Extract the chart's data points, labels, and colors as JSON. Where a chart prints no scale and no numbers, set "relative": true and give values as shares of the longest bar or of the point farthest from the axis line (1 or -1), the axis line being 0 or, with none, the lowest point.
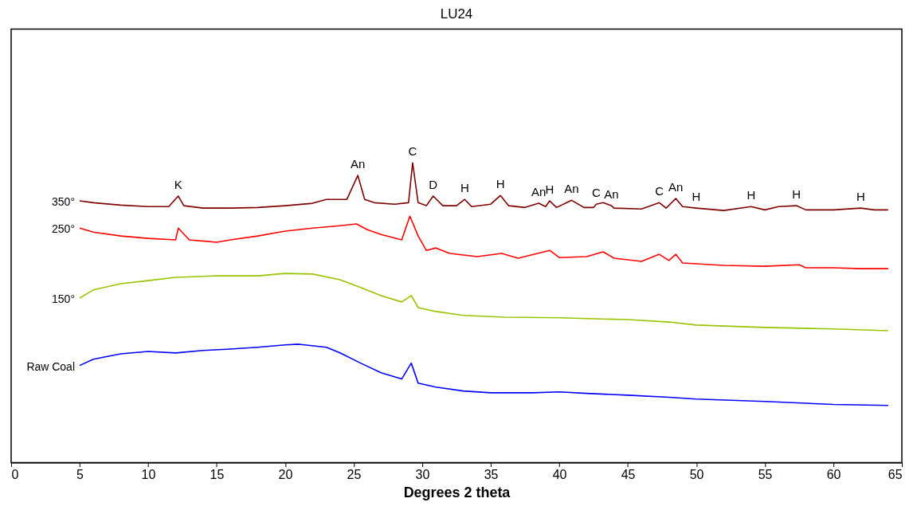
{
  "chart_data": {
    "type": "line",
    "title": "LU24",
    "xlabel": "Degrees 2 theta",
    "relative": true,
    "xlim": [
      0,
      65
    ],
    "xticks": [
      0,
      5,
      10,
      15,
      20,
      25,
      30,
      35,
      40,
      45,
      50,
      55,
      60,
      65
    ],
    "grid": false,
    "legend": false,
    "marker": "none",
    "line_style": "solid",
    "series": [
      {
        "name": "350°",
        "color": "#800000",
        "x": [
          5,
          6,
          8,
          10,
          11.5,
          12.2,
          12.6,
          14,
          16,
          18,
          20,
          22,
          23,
          24.5,
          25.3,
          25.8,
          26.5,
          28,
          29.0,
          29.3,
          29.7,
          30.3,
          30.8,
          31.5,
          32.5,
          33.1,
          33.6,
          35,
          35.7,
          36.3,
          37.5,
          38.5,
          39,
          39.3,
          39.8,
          40.9,
          41.8,
          42.5,
          42.7,
          43.2,
          43.8,
          44,
          46,
          47.3,
          47.8,
          48.5,
          49,
          50,
          52,
          54,
          55,
          56,
          57.3,
          58,
          60,
          62,
          63,
          64
        ],
        "values": [
          0.873,
          0.867,
          0.859,
          0.854,
          0.854,
          0.889,
          0.857,
          0.849,
          0.849,
          0.851,
          0.857,
          0.865,
          0.878,
          0.878,
          0.958,
          0.878,
          0.867,
          0.862,
          0.867,
          1,
          0.867,
          0.857,
          0.889,
          0.857,
          0.857,
          0.878,
          0.854,
          0.862,
          0.891,
          0.857,
          0.851,
          0.865,
          0.854,
          0.873,
          0.851,
          0.875,
          0.851,
          0.851,
          0.862,
          0.867,
          0.857,
          0.849,
          0.846,
          0.867,
          0.849,
          0.881,
          0.854,
          0.849,
          0.841,
          0.854,
          0.843,
          0.854,
          0.857,
          0.843,
          0.843,
          0.849,
          0.843,
          0.843
        ]
      },
      {
        "name": "250°",
        "color": "#ff0000",
        "x": [
          5,
          6,
          8,
          10,
          12,
          12.2,
          13,
          15,
          16,
          18,
          20,
          22,
          24,
          25.2,
          26,
          27,
          28.5,
          29.1,
          29.7,
          30.3,
          31,
          32,
          34,
          35.8,
          37,
          39.3,
          40,
          42,
          43.2,
          44,
          46,
          47.3,
          48,
          48.5,
          49,
          52,
          55,
          57.5,
          58,
          60,
          62,
          64
        ],
        "values": [
          0.782,
          0.769,
          0.756,
          0.748,
          0.743,
          0.782,
          0.743,
          0.735,
          0.743,
          0.756,
          0.772,
          0.782,
          0.79,
          0.796,
          0.777,
          0.761,
          0.743,
          0.822,
          0.756,
          0.708,
          0.716,
          0.698,
          0.687,
          0.698,
          0.682,
          0.708,
          0.684,
          0.687,
          0.703,
          0.682,
          0.671,
          0.695,
          0.674,
          0.695,
          0.666,
          0.658,
          0.655,
          0.66,
          0.65,
          0.65,
          0.647,
          0.647
        ]
      },
      {
        "name": "150°",
        "color": "#99c400",
        "x": [
          5,
          6,
          8,
          10,
          12,
          15,
          18,
          20,
          22,
          24,
          25.5,
          27,
          28.5,
          29.2,
          29.7,
          31,
          33,
          36,
          40,
          45,
          48,
          50,
          55,
          60,
          64
        ],
        "values": [
          0.549,
          0.576,
          0.597,
          0.607,
          0.618,
          0.623,
          0.623,
          0.631,
          0.629,
          0.61,
          0.584,
          0.557,
          0.536,
          0.557,
          0.517,
          0.504,
          0.491,
          0.485,
          0.483,
          0.477,
          0.469,
          0.459,
          0.451,
          0.446,
          0.44
        ]
      },
      {
        "name": "Raw Coal",
        "color": "#0000ff",
        "x": [
          5,
          6,
          8,
          10,
          12,
          14,
          16,
          18,
          20,
          21,
          23,
          24,
          25.5,
          27,
          28.5,
          29.2,
          29.7,
          31,
          33,
          35,
          38,
          40,
          42,
          45,
          48,
          50,
          55,
          60,
          64
        ],
        "values": [
          0.324,
          0.345,
          0.363,
          0.371,
          0.366,
          0.374,
          0.379,
          0.385,
          0.393,
          0.395,
          0.385,
          0.366,
          0.332,
          0.3,
          0.279,
          0.332,
          0.265,
          0.252,
          0.239,
          0.233,
          0.233,
          0.236,
          0.231,
          0.225,
          0.218,
          0.212,
          0.204,
          0.194,
          0.191
        ]
      }
    ],
    "annotations": [
      {
        "text": "K",
        "x": 12.2,
        "y": 0.889
      },
      {
        "text": "An",
        "x": 25.3,
        "y": 0.958
      },
      {
        "text": "C",
        "x": 29.3,
        "y": 1
      },
      {
        "text": "D",
        "x": 30.8,
        "y": 0.889
      },
      {
        "text": "H",
        "x": 33.1,
        "y": 0.878
      },
      {
        "text": "H",
        "x": 35.7,
        "y": 0.891
      },
      {
        "text": "An",
        "x": 38.5,
        "y": 0.865
      },
      {
        "text": "H",
        "x": 39.3,
        "y": 0.873
      },
      {
        "text": "An",
        "x": 40.9,
        "y": 0.875
      },
      {
        "text": "C",
        "x": 42.7,
        "y": 0.862
      },
      {
        "text": "An",
        "x": 43.8,
        "y": 0.857
      },
      {
        "text": "C",
        "x": 47.3,
        "y": 0.867
      },
      {
        "text": "An",
        "x": 48.5,
        "y": 0.881
      },
      {
        "text": "H",
        "x": 50,
        "y": 0.849
      },
      {
        "text": "H",
        "x": 54,
        "y": 0.854
      },
      {
        "text": "H",
        "x": 57.3,
        "y": 0.857
      },
      {
        "text": "H",
        "x": 62,
        "y": 0.849
      }
    ]
  }
}
